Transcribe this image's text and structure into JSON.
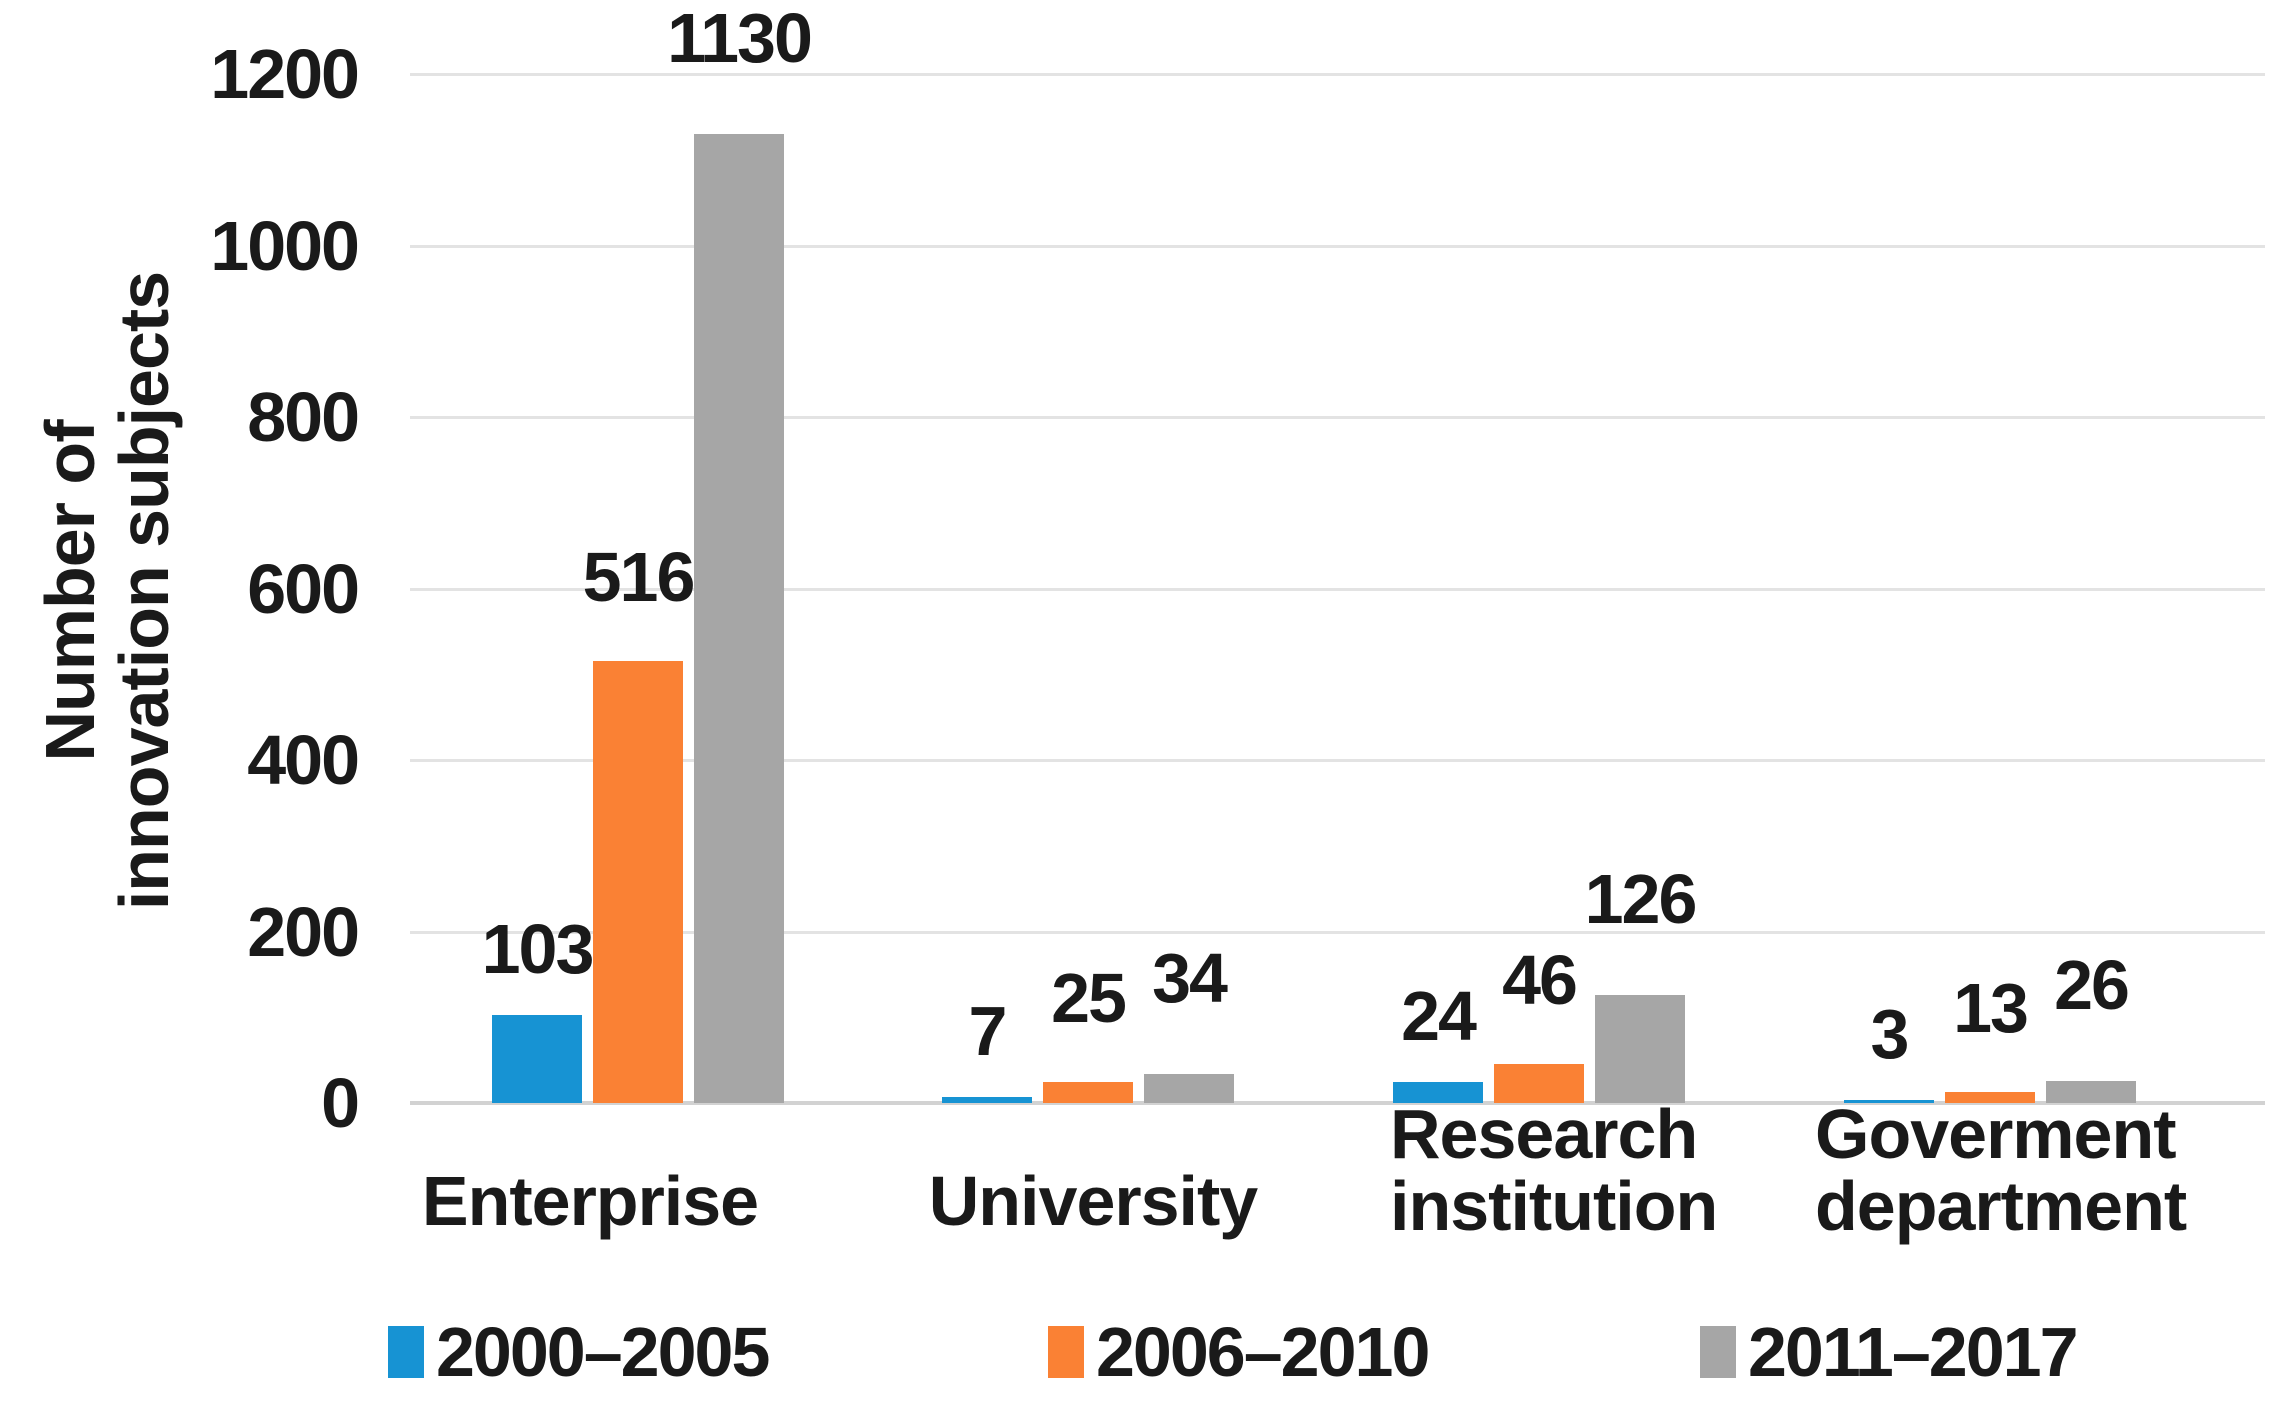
{
  "chart_data": {
    "type": "bar",
    "title": "",
    "ylabel_lines": [
      "Number of",
      "innovation subjects"
    ],
    "xlabel": "",
    "categories": [
      {
        "label_lines": [
          "Enterprise"
        ]
      },
      {
        "label_lines": [
          "University"
        ]
      },
      {
        "label_lines": [
          "Research",
          "institution"
        ]
      },
      {
        "label_lines": [
          "Goverment",
          "department"
        ]
      }
    ],
    "series": [
      {
        "name": "2000–2005",
        "color": "#1793D3",
        "values": [
          103,
          7,
          24,
          3
        ]
      },
      {
        "name": "2006–2010",
        "color": "#FA8134",
        "values": [
          516,
          25,
          46,
          13
        ]
      },
      {
        "name": "2011–2017",
        "color": "#A6A6A6",
        "values": [
          1130,
          34,
          126,
          26
        ]
      }
    ],
    "y_axis": {
      "min": 0,
      "max": 1200,
      "step": 200,
      "ticks": [
        "0",
        "200",
        "400",
        "600",
        "800",
        "1000",
        "1200"
      ]
    },
    "grid": true,
    "legend_position": "bottom",
    "colors": {
      "grid": "#E3E3E3",
      "axis_line": "#D2D2D2",
      "text": "#1A1A1A",
      "background": "#FFFFFF"
    }
  }
}
